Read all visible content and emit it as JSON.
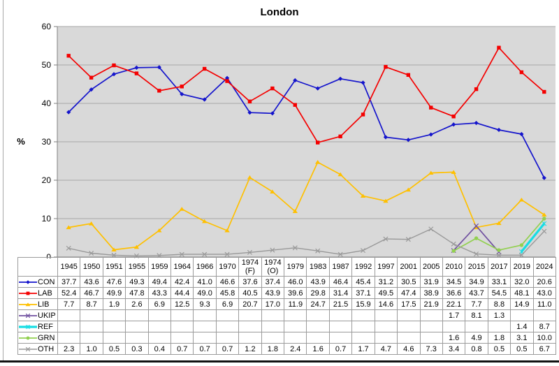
{
  "chart_data": {
    "type": "line",
    "title": "London",
    "xlabel": "",
    "ylabel": "%",
    "ylim": [
      0,
      60
    ],
    "ytick_step": 10,
    "grid": "horizontal",
    "plot_bg_color": "#d9d9d9",
    "gridline_color": "#a6a6a6",
    "axis_color": "#7f7f7f",
    "legend_position": "table-left",
    "categories": [
      "1945",
      "1950",
      "1951",
      "1955",
      "1959",
      "1964",
      "1966",
      "1970",
      "1974 (F)",
      "1974 (O)",
      "1979",
      "1983",
      "1987",
      "1992",
      "1997",
      "2001",
      "2005",
      "2010",
      "2015",
      "2017",
      "2019",
      "2024"
    ],
    "series": [
      {
        "name": "CON",
        "color": "#1414cc",
        "marker": "diamond",
        "line_width": 1.7,
        "values": [
          37.7,
          43.6,
          47.6,
          49.3,
          49.4,
          42.4,
          41.0,
          46.6,
          37.6,
          37.4,
          46.0,
          43.9,
          46.4,
          45.4,
          31.2,
          30.5,
          31.9,
          34.5,
          34.9,
          33.1,
          32.0,
          20.6
        ]
      },
      {
        "name": "LAB",
        "color": "#f40000",
        "marker": "square",
        "line_width": 1.7,
        "values": [
          52.4,
          46.7,
          49.9,
          47.8,
          43.3,
          44.4,
          49.0,
          45.8,
          40.5,
          43.9,
          39.6,
          29.8,
          31.4,
          37.1,
          49.5,
          47.4,
          38.9,
          36.6,
          43.7,
          54.5,
          48.1,
          43.0
        ]
      },
      {
        "name": "LIB",
        "color": "#ffc000",
        "marker": "triangle",
        "line_width": 1.7,
        "values": [
          7.7,
          8.7,
          1.9,
          2.6,
          6.9,
          12.5,
          9.3,
          6.9,
          20.7,
          17.0,
          11.9,
          24.7,
          21.5,
          15.9,
          14.6,
          17.5,
          21.9,
          22.1,
          7.7,
          8.8,
          14.9,
          11.0
        ]
      },
      {
        "name": "UKIP",
        "color": "#7050a0",
        "marker": "x",
        "line_width": 1.7,
        "values": [
          null,
          null,
          null,
          null,
          null,
          null,
          null,
          null,
          null,
          null,
          null,
          null,
          null,
          null,
          null,
          null,
          null,
          1.7,
          8.1,
          1.3,
          null,
          null
        ]
      },
      {
        "name": "REF",
        "color": "#17dde4",
        "marker": "star",
        "line_width": 3.2,
        "values": [
          null,
          null,
          null,
          null,
          null,
          null,
          null,
          null,
          null,
          null,
          null,
          null,
          null,
          null,
          null,
          null,
          null,
          null,
          null,
          null,
          1.4,
          8.7
        ]
      },
      {
        "name": "GRN",
        "color": "#92d050",
        "marker": "circle",
        "line_width": 1.7,
        "values": [
          null,
          null,
          null,
          null,
          null,
          null,
          null,
          null,
          null,
          null,
          null,
          null,
          null,
          null,
          null,
          null,
          null,
          1.6,
          4.9,
          1.8,
          3.1,
          10.0
        ]
      },
      {
        "name": "OTH",
        "color": "#999999",
        "marker": "cross",
        "line_width": 1.4,
        "values": [
          2.3,
          1.0,
          0.5,
          0.3,
          0.4,
          0.7,
          0.7,
          0.7,
          1.2,
          1.8,
          2.4,
          1.6,
          0.7,
          1.7,
          4.7,
          4.6,
          7.3,
          3.4,
          0.8,
          0.5,
          0.5,
          6.7
        ]
      }
    ]
  }
}
